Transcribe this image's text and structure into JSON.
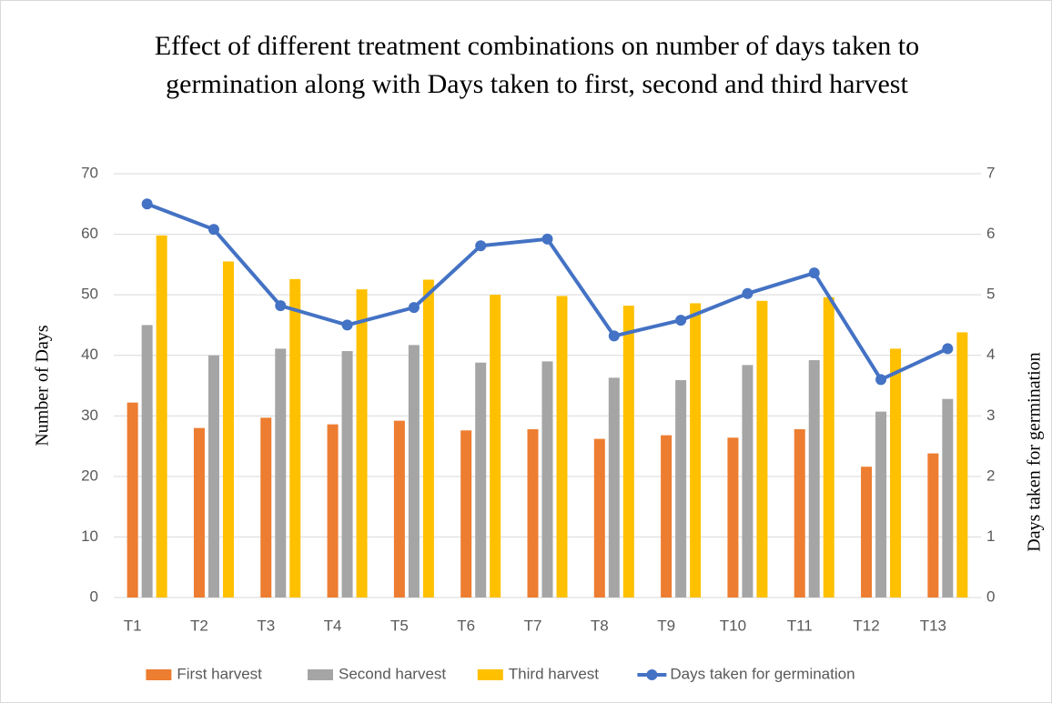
{
  "chart_data": {
    "type": "bar",
    "title": "Effect of different treatment combinations on number of days taken to germination along with Days taken to first, second and third harvest",
    "ylabel": "Number of Days",
    "y2label": "Days taken for germination",
    "categories": [
      "T1",
      "T2",
      "T3",
      "T4",
      "T5",
      "T6",
      "T7",
      "T8",
      "T9",
      "T10",
      "T11",
      "T12",
      "T13"
    ],
    "series": [
      {
        "name": "First harvest",
        "color": "#ed7d31",
        "values": [
          32.2,
          28,
          29.7,
          28.6,
          29.2,
          27.6,
          27.8,
          26.2,
          26.8,
          26.4,
          27.8,
          21.6,
          23.8
        ]
      },
      {
        "name": "Second harvest",
        "color": "#a5a5a5",
        "values": [
          45,
          40,
          41.1,
          40.7,
          41.7,
          38.8,
          39,
          36.3,
          35.9,
          38.4,
          39.2,
          30.7,
          32.8
        ]
      },
      {
        "name": "Third harvest",
        "color": "#ffc000",
        "values": [
          59.8,
          55.5,
          52.6,
          50.9,
          52.5,
          50,
          49.8,
          48.2,
          48.6,
          49,
          49.6,
          41.1,
          43.8
        ]
      },
      {
        "name": "Days taken for germination",
        "color": "#4472c4",
        "type": "line",
        "axis": "y2",
        "values": [
          6.5,
          6.08,
          4.82,
          4.5,
          4.79,
          5.81,
          5.92,
          4.32,
          4.58,
          5.02,
          5.36,
          3.6,
          4.11
        ]
      }
    ],
    "ylim": [
      0,
      70
    ],
    "yticks": [
      0,
      10,
      20,
      30,
      40,
      50,
      60,
      70
    ],
    "y2lim": [
      0,
      7
    ],
    "y2ticks": [
      0,
      1,
      2,
      3,
      4,
      5,
      6,
      7
    ],
    "grid": true,
    "legend": "bottom"
  }
}
